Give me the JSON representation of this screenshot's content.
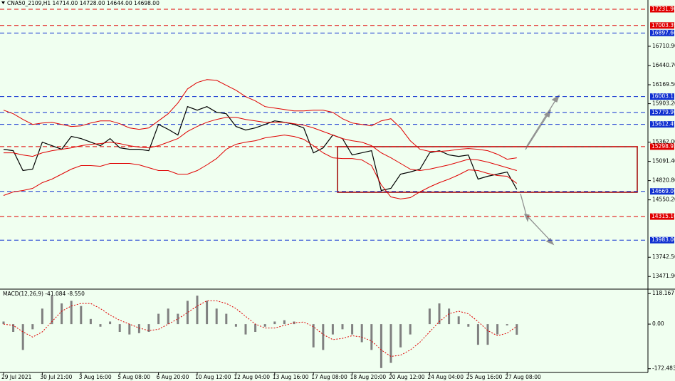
{
  "chart_data": [
    {
      "type": "line",
      "title": "CNA50_2109,H1  14714.00 14728.00 14644.00 14698.00",
      "categories": [
        "29 Jul 2021",
        null,
        null,
        null,
        "30 Jul 21:00",
        null,
        null,
        null,
        "3 Aug 16:00",
        null,
        null,
        null,
        "5 Aug 08:00",
        null,
        null,
        null,
        "6 Aug 20:00",
        null,
        null,
        null,
        "10 Aug 12:00",
        null,
        null,
        null,
        "12 Aug 04:00",
        null,
        null,
        null,
        "13 Aug 16:00",
        null,
        null,
        null,
        "17 Aug 08:00",
        null,
        null,
        null,
        "18 Aug 20:00",
        null,
        null,
        null,
        "20 Aug 12:00",
        null,
        null,
        null,
        "24 Aug 04:00",
        null,
        null,
        null,
        "25 Aug 16:00",
        null,
        null,
        null,
        "27 Aug 08:00",
        null
      ],
      "series": [
        {
          "color": "#000000",
          "values": [
            15262,
            15242,
            14962,
            14982,
            15362,
            15312,
            15262,
            15442,
            15412,
            15362,
            15312,
            15412,
            15282,
            15262,
            15262,
            15242,
            15612,
            15542,
            15462,
            15862,
            15812,
            15862,
            15782,
            15762,
            15582,
            15532,
            15562,
            15612,
            15662,
            15642,
            15612,
            15562,
            15212,
            15282,
            15462,
            15412,
            15182,
            15212,
            15242,
            14682,
            14712,
            14912,
            14942,
            14982,
            15212,
            15242,
            15182,
            15162,
            15182,
            14842,
            14882,
            14912,
            14942,
            14698
          ]
        },
        {
          "color": "#e00000",
          "values": [
            15812,
            15762,
            15682,
            15612,
            15632,
            15642,
            15612,
            15582,
            15592,
            15632,
            15662,
            15662,
            15622,
            15562,
            15542,
            15562,
            15662,
            15762,
            15912,
            16112,
            16202,
            16242,
            16232,
            16162,
            16092,
            16002,
            15942,
            15862,
            15842,
            15822,
            15802,
            15802,
            15812,
            15812,
            15782,
            15692,
            15632,
            15612,
            15592,
            15662,
            15692,
            15562,
            15382,
            15262,
            15232,
            15232,
            15242,
            15262,
            15272,
            15262,
            15242,
            15192,
            15122,
            15142
          ]
        },
        {
          "color": "#e00000",
          "values": [
            15212,
            15212,
            15182,
            15162,
            15212,
            15242,
            15262,
            15282,
            15312,
            15332,
            15342,
            15362,
            15342,
            15312,
            15292,
            15282,
            15312,
            15362,
            15412,
            15512,
            15582,
            15642,
            15682,
            15712,
            15712,
            15682,
            15662,
            15642,
            15642,
            15642,
            15622,
            15602,
            15562,
            15512,
            15462,
            15412,
            15382,
            15362,
            15312,
            15212,
            15142,
            15062,
            14982,
            14962,
            14982,
            15012,
            15042,
            15082,
            15122,
            15112,
            15082,
            15042,
            15002,
            14962
          ]
        },
        {
          "color": "#e00000",
          "values": [
            14612,
            14662,
            14682,
            14712,
            14792,
            14842,
            14912,
            14982,
            15032,
            15032,
            15022,
            15062,
            15062,
            15062,
            15042,
            15002,
            14962,
            14962,
            14912,
            14912,
            14962,
            15042,
            15132,
            15262,
            15332,
            15362,
            15382,
            15422,
            15442,
            15462,
            15442,
            15402,
            15312,
            15212,
            15142,
            15132,
            15132,
            15112,
            15032,
            14762,
            14592,
            14562,
            14582,
            14662,
            14732,
            14792,
            14842,
            14902,
            14972,
            14962,
            14922,
            14892,
            14882,
            14782
          ]
        }
      ],
      "ylim": [
        13304,
        17362
      ],
      "yticks": [
        {
          "value": 16710.9,
          "label": "16710.90"
        },
        {
          "value": 16440.7,
          "label": "16440.70"
        },
        {
          "value": 16169.5,
          "label": "16169.50"
        },
        {
          "value": 15903.2,
          "label": "15903.20"
        },
        {
          "value": 15362,
          "label": "15362.00"
        },
        {
          "value": 15091.4,
          "label": "15091.40"
        },
        {
          "value": 14820.8,
          "label": "14820.80"
        },
        {
          "value": 14550.2,
          "label": "14550.20"
        },
        {
          "value": 13742.5,
          "label": "13742.50"
        },
        {
          "value": 13471.9,
          "label": "13471.90"
        }
      ],
      "levels": [
        {
          "value": 17231.9,
          "label": "17231.90",
          "color": "#e00000"
        },
        {
          "value": 17003.39,
          "label": "17003.39",
          "color": "#e00000"
        },
        {
          "value": 16897.6,
          "label": "16897.60",
          "color": "#1030d0"
        },
        {
          "value": 16003.11,
          "label": "16003.11",
          "color": "#1030d0"
        },
        {
          "value": 15779.9,
          "label": "15779.90",
          "color": "#1030d0"
        },
        {
          "value": 15612.49,
          "label": "15612.49",
          "color": "#1030d0"
        },
        {
          "value": 15298.93,
          "label": "15298.93",
          "color": "#e00000"
        },
        {
          "value": 14669.06,
          "label": "14669.06",
          "color": "#1030d0"
        },
        {
          "value": 14315.16,
          "label": "14315.16",
          "color": "#e00000"
        },
        {
          "value": 13983,
          "label": "13983.00",
          "color": "#1030d0"
        }
      ]
    },
    {
      "type": "macd",
      "title": "MACD(12,26,9) -41.084 -8.550",
      "values": [
        10,
        -30,
        -100,
        -20,
        60,
        110,
        80,
        90,
        70,
        20,
        -10,
        10,
        -30,
        -40,
        -35,
        -30,
        40,
        60,
        40,
        90,
        110,
        90,
        60,
        40,
        -10,
        -40,
        -30,
        -10,
        10,
        15,
        10,
        0,
        -90,
        -100,
        -40,
        -20,
        -40,
        -70,
        -100,
        -170,
        -150,
        -90,
        -40,
        0,
        60,
        80,
        60,
        30,
        -10,
        -80,
        -80,
        -40,
        -5,
        -41.084
      ],
      "color": "#808080",
      "series": [
        {
          "color": "#e00000",
          "values": [
            0,
            -5,
            -30,
            -50,
            -30,
            10,
            50,
            70,
            80,
            80,
            60,
            35,
            15,
            0,
            -15,
            -25,
            -20,
            0,
            20,
            45,
            70,
            90,
            90,
            80,
            60,
            30,
            0,
            -15,
            -15,
            -5,
            5,
            8,
            -10,
            -40,
            -60,
            -55,
            -45,
            -50,
            -65,
            -100,
            -125,
            -120,
            -100,
            -70,
            -30,
            10,
            40,
            50,
            40,
            10,
            -25,
            -45,
            -35,
            -8.55
          ]
        }
      ],
      "ylim": [
        -187,
        127
      ],
      "yticks": [
        118.167,
        {
          "value": 0,
          "label": "0.00"
        },
        -172.483
      ]
    }
  ]
}
